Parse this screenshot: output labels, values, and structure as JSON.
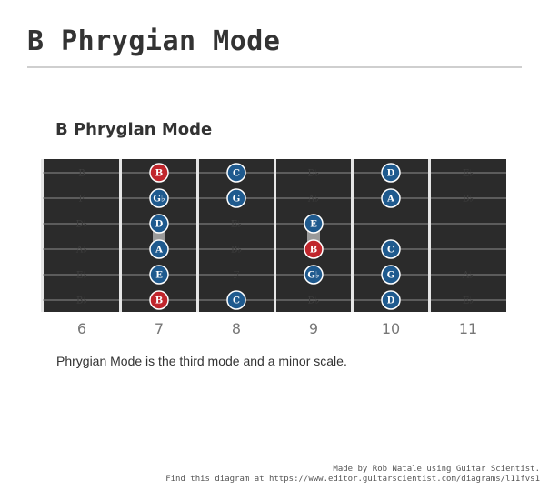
{
  "page": {
    "title": "B Phrygian Mode"
  },
  "diagram": {
    "title": "B Phrygian Mode",
    "caption": "Phrygian Mode is the third mode and a minor scale.",
    "colors": {
      "board": "#2b2b2b",
      "string": "#8c8c8c",
      "fret": "#e6e6e6",
      "root": "#c0262c",
      "note": "#1f5a8e",
      "ghost_label": "#3e3e3e",
      "fret_number": "#777777"
    },
    "frets": [
      6,
      7,
      8,
      9,
      10,
      11
    ],
    "strings": 6,
    "ghost_notes": [
      {
        "string": 1,
        "fret": 6,
        "label": "B"
      },
      {
        "string": 2,
        "fret": 6,
        "label": "F"
      },
      {
        "string": 3,
        "fret": 6,
        "label": "D♭"
      },
      {
        "string": 4,
        "fret": 6,
        "label": "A♭"
      },
      {
        "string": 5,
        "fret": 6,
        "label": "E♭"
      },
      {
        "string": 6,
        "fret": 6,
        "label": "B♭"
      },
      {
        "string": 1,
        "fret": 9,
        "label": "D♭"
      },
      {
        "string": 2,
        "fret": 9,
        "label": "A♭"
      },
      {
        "string": 3,
        "fret": 8,
        "label": "E♭"
      },
      {
        "string": 4,
        "fret": 8,
        "label": "B♭"
      },
      {
        "string": 5,
        "fret": 8,
        "label": "F"
      },
      {
        "string": 6,
        "fret": 9,
        "label": "D♭"
      },
      {
        "string": 1,
        "fret": 11,
        "label": "E♭"
      },
      {
        "string": 2,
        "fret": 11,
        "label": "B♭"
      },
      {
        "string": 5,
        "fret": 11,
        "label": "A♭"
      },
      {
        "string": 6,
        "fret": 11,
        "label": "E♭"
      }
    ],
    "notes": [
      {
        "string": 1,
        "fret": 7,
        "label": "B",
        "root": true
      },
      {
        "string": 1,
        "fret": 8,
        "label": "C",
        "root": false
      },
      {
        "string": 1,
        "fret": 10,
        "label": "D",
        "root": false
      },
      {
        "string": 2,
        "fret": 7,
        "label": "G♭",
        "root": false
      },
      {
        "string": 2,
        "fret": 8,
        "label": "G",
        "root": false
      },
      {
        "string": 2,
        "fret": 10,
        "label": "A",
        "root": false
      },
      {
        "string": 3,
        "fret": 7,
        "label": "D",
        "root": false
      },
      {
        "string": 3,
        "fret": 9,
        "label": "E",
        "root": false
      },
      {
        "string": 4,
        "fret": 7,
        "label": "A",
        "root": false
      },
      {
        "string": 4,
        "fret": 9,
        "label": "B",
        "root": true
      },
      {
        "string": 4,
        "fret": 10,
        "label": "C",
        "root": false
      },
      {
        "string": 5,
        "fret": 7,
        "label": "E",
        "root": false
      },
      {
        "string": 5,
        "fret": 9,
        "label": "G♭",
        "root": false
      },
      {
        "string": 5,
        "fret": 10,
        "label": "G",
        "root": false
      },
      {
        "string": 6,
        "fret": 7,
        "label": "B",
        "root": true
      },
      {
        "string": 6,
        "fret": 8,
        "label": "C",
        "root": false
      },
      {
        "string": 6,
        "fret": 10,
        "label": "D",
        "root": false
      }
    ],
    "slides": [
      {
        "string_from": 3,
        "string_to": 4,
        "fret": 7
      },
      {
        "string_from": 3,
        "string_to": 4,
        "fret": 9
      }
    ]
  },
  "credits": {
    "line1": "Made by Rob Natale using Guitar Scientist.",
    "line2": "Find this diagram at https://www.editor.guitarscientist.com/diagrams/l11fvs1"
  }
}
